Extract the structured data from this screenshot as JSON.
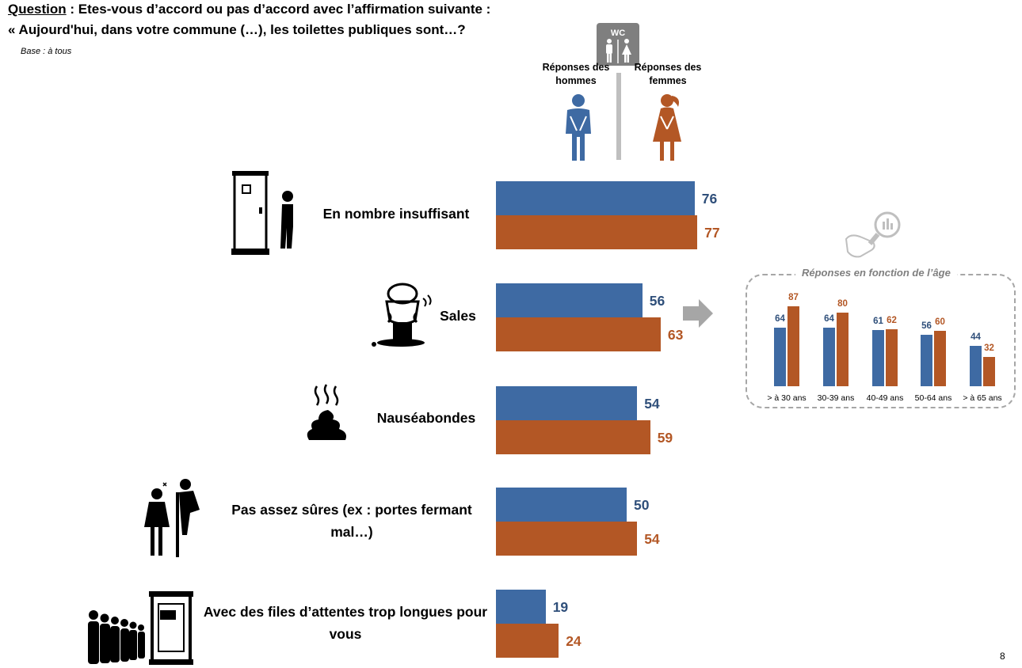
{
  "question": {
    "label": "Question",
    "rest": " : Etes-vous d’accord ou pas d’accord avec l’affirmation suivante :",
    "line2": "« Aujourd'hui, dans votre commune (…), les toilettes publiques sont…?"
  },
  "base": "Base : à tous",
  "wc_sign": "WC",
  "legend": {
    "men": "Réponses des hommes",
    "women": "Réponses des femmes"
  },
  "colors": {
    "men": "#3e6aa3",
    "women": "#b35725",
    "men_text": "#2f4f7a",
    "women_text": "#b35725",
    "arrow": "#a6a6a6"
  },
  "icons": [
    "portable-toilet-icon",
    "dirty-toilet-icon",
    "smelly-poop-icon",
    "peeping-man-icon",
    "queue-icon",
    "wc-sign-icon",
    "man-icon",
    "woman-icon",
    "magnifier-chart-icon",
    "arrow-right-icon"
  ],
  "chart_data": [
    {
      "type": "bar",
      "orientation": "horizontal",
      "categories": [
        "En nombre insuffisant",
        "Sales",
        "Nauséabondes",
        "Pas assez sûres (ex : portes fermant mal…)",
        "Avec des files d’attentes trop longues pour vous"
      ],
      "series": [
        {
          "name": "Réponses des hommes",
          "values": [
            76,
            56,
            54,
            50,
            19
          ]
        },
        {
          "name": "Réponses des femmes",
          "values": [
            77,
            63,
            59,
            54,
            24
          ]
        }
      ],
      "xlim": [
        0,
        100
      ],
      "grid": false
    },
    {
      "type": "bar",
      "title": "Réponses en fonction de l’âge",
      "categories": [
        "> à 30 ans",
        "30-39 ans",
        "40-49 ans",
        "50-64 ans",
        "> à 65 ans"
      ],
      "series": [
        {
          "values": [
            64,
            64,
            61,
            56,
            44
          ]
        },
        {
          "values": [
            87,
            80,
            62,
            60,
            32
          ]
        }
      ],
      "ylim": [
        0,
        100
      ],
      "grid": false
    }
  ],
  "page_number": "8"
}
